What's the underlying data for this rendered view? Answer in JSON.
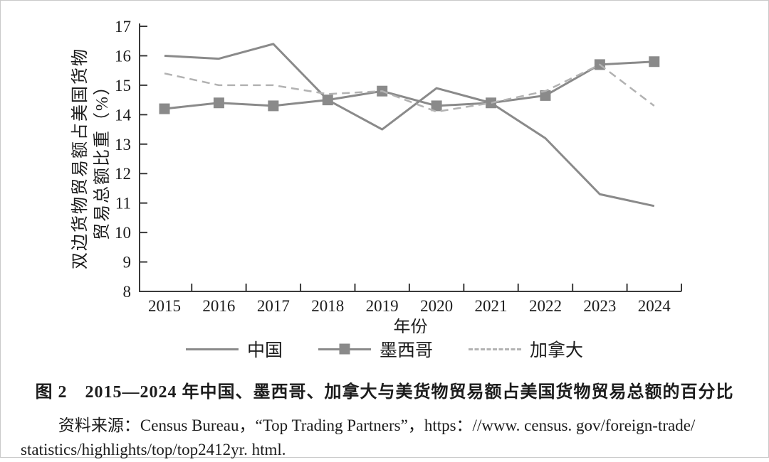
{
  "figure": {
    "caption": "图 2　2015—2024 年中国、墨西哥、加拿大与美货物贸易额占美国货物贸易总额的百分比",
    "source_line1": "资料来源：Census Bureau，“Top Trading Partners”，https：//www. census. gov/foreign-trade/",
    "source_line2": "statistics/highlights/top/top2412yr. html."
  },
  "chart_data": {
    "type": "line",
    "title": "",
    "xlabel": "年份",
    "ylabel_lines": [
      "双边货物贸易额占美国货物",
      "贸易总额比重（%）"
    ],
    "ylim": [
      8,
      17
    ],
    "ytick_step": 1,
    "grid": false,
    "legend_position": "bottom",
    "categories": [
      "2015",
      "2016",
      "2017",
      "2018",
      "2019",
      "2020",
      "2021",
      "2022",
      "2023",
      "2024"
    ],
    "series": [
      {
        "name": "中国",
        "style": "solid",
        "marker": "none",
        "color": "#8a8a8a",
        "width": 3,
        "values": [
          16.0,
          15.9,
          16.4,
          14.5,
          13.5,
          14.9,
          14.4,
          13.2,
          11.3,
          10.9
        ]
      },
      {
        "name": "墨西哥",
        "style": "solid",
        "marker": "square",
        "color": "#8a8a8a",
        "width": 3,
        "values": [
          14.2,
          14.4,
          14.3,
          14.5,
          14.8,
          14.3,
          14.4,
          14.65,
          15.7,
          15.8
        ]
      },
      {
        "name": "加拿大",
        "style": "dashed",
        "marker": "none",
        "color": "#b2b2b2",
        "width": 2.5,
        "values": [
          15.4,
          15.0,
          15.0,
          14.7,
          14.8,
          14.1,
          14.4,
          14.8,
          15.7,
          14.3
        ]
      }
    ]
  },
  "colors": {
    "axis": "#3a3a3a",
    "text": "#1c1c1c",
    "background": "#ffffff"
  }
}
